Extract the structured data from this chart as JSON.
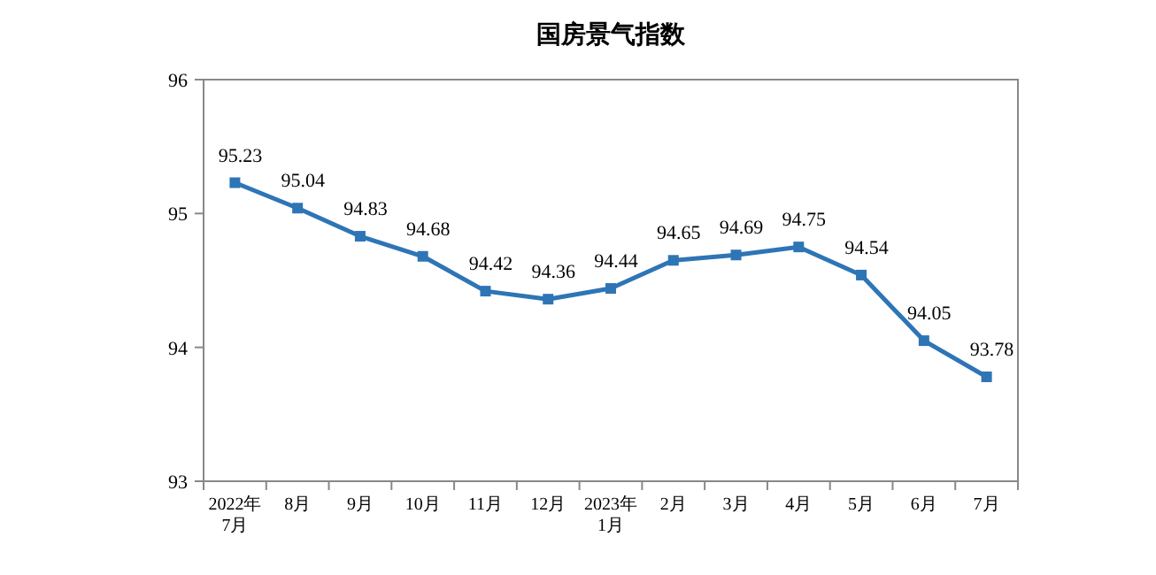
{
  "chart_data": {
    "type": "line",
    "title": "国房景气指数",
    "categories": [
      "2022年\n7月",
      "8月",
      "9月",
      "10月",
      "11月",
      "12月",
      "2023年\n1月",
      "2月",
      "3月",
      "4月",
      "5月",
      "6月",
      "7月"
    ],
    "series": [
      {
        "color": "#2e75b6",
        "values": [
          95.23,
          95.04,
          94.83,
          94.68,
          94.42,
          94.36,
          94.44,
          94.65,
          94.69,
          94.75,
          94.54,
          94.05,
          93.78
        ]
      }
    ],
    "ylim": [
      93,
      96
    ],
    "yticks": [
      93,
      94,
      95,
      96
    ],
    "grid": false,
    "marker": "square",
    "line_style": "solid",
    "data_labels": true
  }
}
